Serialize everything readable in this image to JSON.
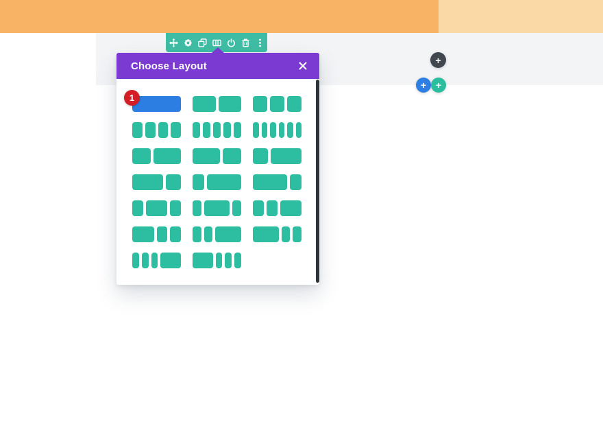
{
  "colors": {
    "orange_dark": "#f9b365",
    "orange_light": "#fbd9a7",
    "section_gray": "#f3f4f6",
    "toolbar_teal": "#3fbda4",
    "modal_purple": "#7b3ad2",
    "block_teal": "#2dbda1",
    "selected_blue": "#2d7ee2",
    "badge_red": "#d21e24",
    "scrollbar_dark": "#2e353a",
    "button_dark": "#41474e",
    "button_blue": "#2d7fe4",
    "button_teal": "#2abd9e"
  },
  "toolbar": {
    "icons": [
      {
        "name": "move-icon"
      },
      {
        "name": "settings-icon"
      },
      {
        "name": "duplicate-icon"
      },
      {
        "name": "columns-icon"
      },
      {
        "name": "disable-icon"
      },
      {
        "name": "trash-icon"
      },
      {
        "name": "more-options-icon"
      }
    ]
  },
  "modal": {
    "title": "Choose Layout",
    "badge_count": "1",
    "layouts": [
      {
        "id": 1,
        "columns": [
          1
        ],
        "selected": true
      },
      {
        "id": 2,
        "columns": [
          1,
          1
        ],
        "selected": false
      },
      {
        "id": 3,
        "columns": [
          1,
          1,
          1
        ],
        "selected": false
      },
      {
        "id": 4,
        "columns": [
          1,
          1,
          1,
          1
        ],
        "selected": false
      },
      {
        "id": 5,
        "columns": [
          1,
          1,
          1,
          1,
          1
        ],
        "selected": false
      },
      {
        "id": 6,
        "columns": [
          1,
          1,
          1,
          1,
          1,
          1
        ],
        "selected": false
      },
      {
        "id": 7,
        "columns": [
          2,
          3
        ],
        "selected": false
      },
      {
        "id": 8,
        "columns": [
          3,
          2
        ],
        "selected": false
      },
      {
        "id": 9,
        "columns": [
          1,
          2
        ],
        "selected": false
      },
      {
        "id": 10,
        "columns": [
          2,
          1
        ],
        "selected": false
      },
      {
        "id": 11,
        "columns": [
          1,
          3
        ],
        "selected": false
      },
      {
        "id": 12,
        "columns": [
          3,
          1
        ],
        "selected": false
      },
      {
        "id": 13,
        "columns": [
          1,
          2,
          1
        ],
        "selected": false
      },
      {
        "id": 14,
        "columns": [
          1,
          3,
          1
        ],
        "selected": false
      },
      {
        "id": 15,
        "columns": [
          1,
          1,
          2
        ],
        "selected": false
      },
      {
        "id": 16,
        "columns": [
          2,
          1,
          1
        ],
        "selected": false
      },
      {
        "id": 17,
        "columns": [
          1,
          1,
          3
        ],
        "selected": false
      },
      {
        "id": 18,
        "columns": [
          3,
          1,
          1
        ],
        "selected": false
      },
      {
        "id": 19,
        "columns": [
          1,
          1,
          1,
          3
        ],
        "selected": false
      },
      {
        "id": 20,
        "columns": [
          3,
          1,
          1,
          1
        ],
        "selected": false
      }
    ]
  },
  "buttons": {
    "plus_label": "+"
  }
}
